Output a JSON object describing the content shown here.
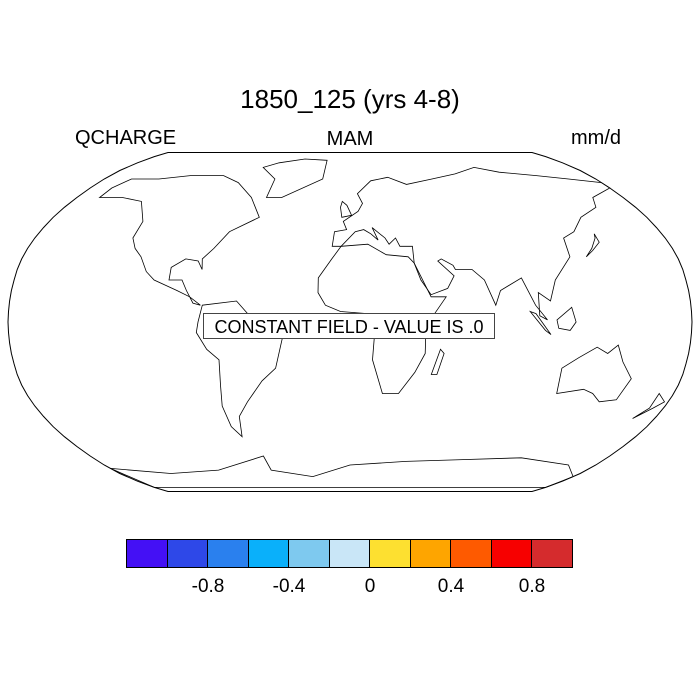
{
  "title": "1850_125 (yrs 4-8)",
  "left_string": "QCHARGE",
  "center_string": "MAM",
  "right_string": "mm/d",
  "message": "CONSTANT FIELD - VALUE IS .0",
  "colorbar": {
    "colors": [
      "#4410f5",
      "#2e48e8",
      "#2a80ee",
      "#0ab0fa",
      "#7ec9ef",
      "#c9e6f7",
      "#fde030",
      "#fea500",
      "#fe5a00",
      "#f70000",
      "#d52b2d"
    ],
    "labels": [
      "-0.8",
      "-0.4",
      "0",
      "0.4",
      "0.8"
    ]
  }
}
